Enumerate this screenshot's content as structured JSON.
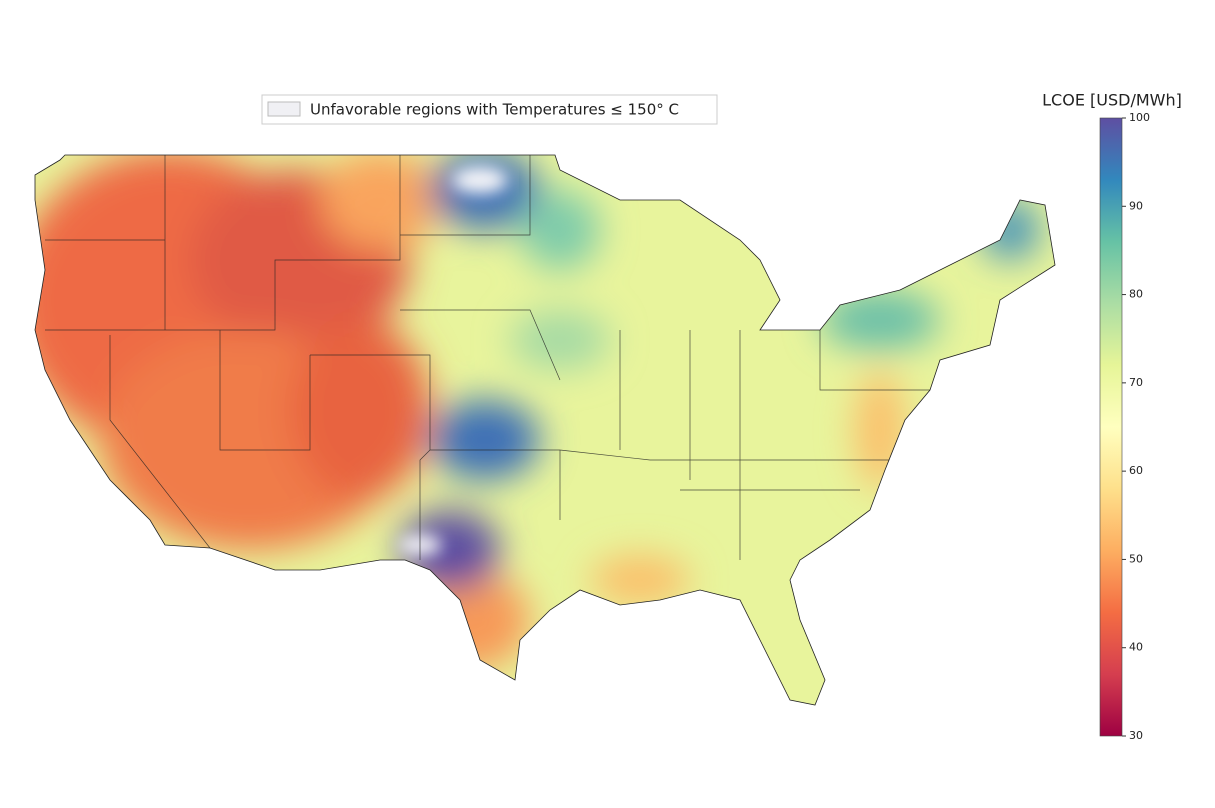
{
  "legend": {
    "label": "Unfavorable regions with Temperatures ≤ 150° C",
    "color": "#f0f0f4"
  },
  "colorbar": {
    "label": "LCOE [USD/MWh]",
    "lim": [
      30,
      100
    ],
    "ticks": [
      30,
      40,
      50,
      60,
      70,
      80,
      90,
      100
    ],
    "colors": [
      "#9e0142",
      "#d53e4f",
      "#f46d43",
      "#fdae61",
      "#fee08b",
      "#ffffbf",
      "#e6f598",
      "#abdda4",
      "#66c2a5",
      "#3288bd",
      "#5e4fa2"
    ]
  }
}
